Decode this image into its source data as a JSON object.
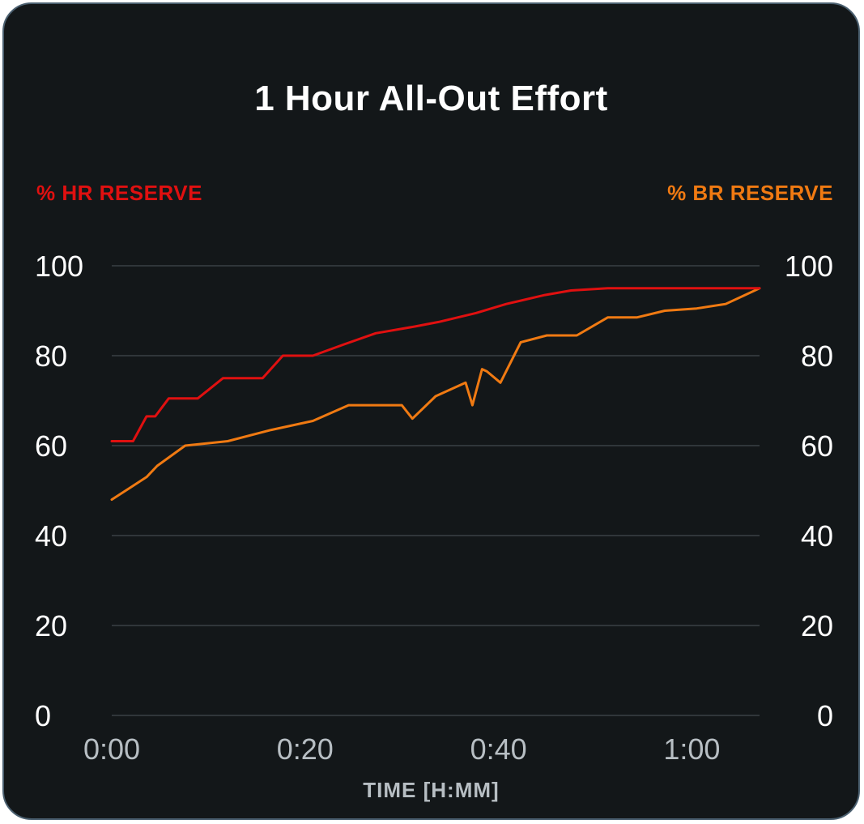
{
  "title": "1 Hour All-Out Effort",
  "chart_data": {
    "type": "line",
    "title": "1 Hour All-Out Effort",
    "xlabel": "TIME [H:MM]",
    "ylabel_left": "% HR RESERVE",
    "ylabel_right": "% BR RESERVE",
    "xlim": [
      0,
      67
    ],
    "ylim": [
      0,
      100
    ],
    "y_ticks": [
      "0",
      "20",
      "40",
      "60",
      "80",
      "100"
    ],
    "x_ticks": [
      {
        "value": 0,
        "label": "0:00"
      },
      {
        "value": 20,
        "label": "0:20"
      },
      {
        "value": 40,
        "label": "0:40"
      },
      {
        "value": 60,
        "label": "1:00"
      }
    ],
    "grid": true,
    "series": [
      {
        "name": "% HR RESERVE",
        "axis": "left",
        "color": "#e01010",
        "x": [
          0,
          2.2,
          3.6,
          4.5,
          5.9,
          8.9,
          11.5,
          15.6,
          17.7,
          20.8,
          24.0,
          27.3,
          31.4,
          33.8,
          37.7,
          40.8,
          44.8,
          47.5,
          51.3,
          57.0,
          62.3,
          67.0
        ],
        "y": [
          61,
          61,
          66.5,
          66.5,
          70.5,
          70.5,
          75,
          75,
          80,
          80,
          82.5,
          85,
          86.5,
          87.5,
          89.5,
          91.5,
          93.5,
          94.5,
          95,
          95,
          95,
          95
        ]
      },
      {
        "name": "% BR RESERVE",
        "axis": "right",
        "color": "#f07a12",
        "x": [
          0,
          1.8,
          3.6,
          4.7,
          7.6,
          12.0,
          16.5,
          20.8,
          24.5,
          30.0,
          31.1,
          33.5,
          36.6,
          37.3,
          38.3,
          38.8,
          40.2,
          42.3,
          45.0,
          48.1,
          51.3,
          54.3,
          57.2,
          60.5,
          63.5,
          65.5,
          67.0
        ],
        "y": [
          48,
          50.5,
          53,
          55.5,
          60,
          61,
          63.5,
          65.5,
          69,
          69,
          66,
          71,
          74,
          69,
          77,
          76.5,
          74,
          83,
          84.5,
          84.5,
          88.5,
          88.5,
          90,
          90.5,
          91.5,
          93.5,
          95
        ]
      }
    ]
  }
}
